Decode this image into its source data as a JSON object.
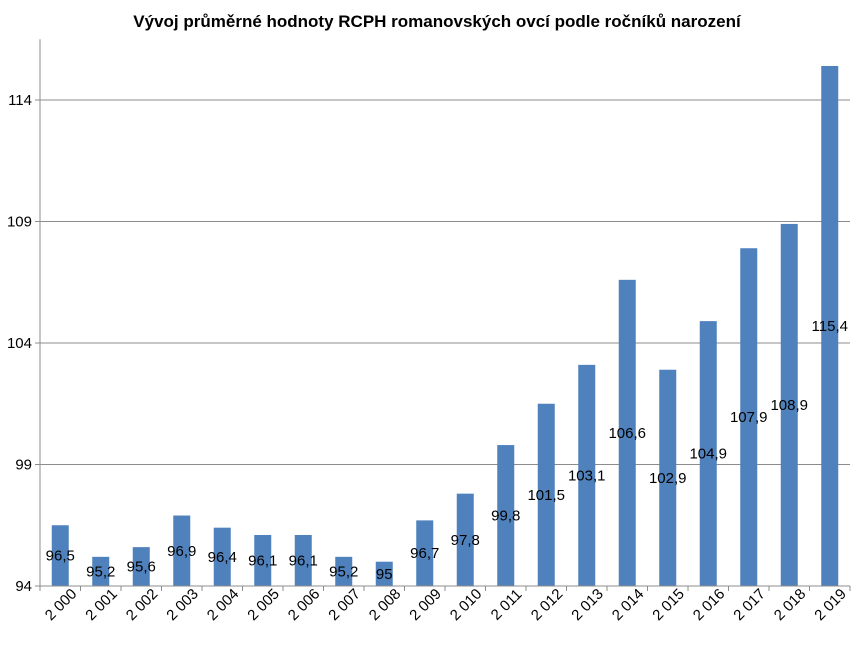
{
  "chart_data": {
    "type": "bar",
    "title": "Vývoj průměrné hodnoty  RCPH romanovských ovcí podle ročníků narození",
    "xlabel": "",
    "ylabel": "",
    "categories": [
      "2 000",
      "2 001",
      "2 002",
      "2 003",
      "2 004",
      "2 005",
      "2 006",
      "2 007",
      "2 008",
      "2 009",
      "2 010",
      "2 011",
      "2 012",
      "2 013",
      "2 014",
      "2 015",
      "2 016",
      "2 017",
      "2 018",
      "2 019"
    ],
    "values": [
      96.5,
      95.2,
      95.6,
      96.9,
      96.4,
      96.1,
      96.1,
      95.2,
      95.0,
      96.7,
      97.8,
      99.8,
      101.5,
      103.1,
      106.6,
      102.9,
      104.9,
      107.9,
      108.9,
      115.4
    ],
    "data_labels": [
      "96,5",
      "95,2",
      "95,6",
      "96,9",
      "96,4",
      "96,1",
      "96,1",
      "95,2",
      "95",
      "96,7",
      "97,8",
      "99,8",
      "101,5",
      "103,1",
      "106,6",
      "102,9",
      "104,9",
      "107,9",
      "108,9",
      "115,4"
    ],
    "y_ticks": [
      94,
      99,
      104,
      109,
      114
    ],
    "y_tick_labels": [
      "94",
      "99",
      "104",
      "109",
      "114"
    ],
    "ylim": [
      94,
      116.5
    ],
    "grid": true,
    "legend": "none",
    "bar_color": "#4f81bd"
  }
}
